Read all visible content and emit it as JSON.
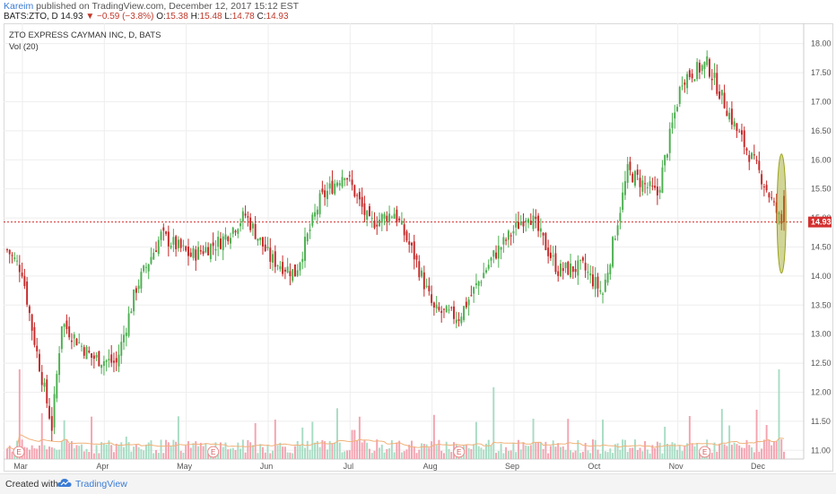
{
  "header": {
    "publisher": "Kareim",
    "published_text": " published on TradingView.com, December 12, 2017 15:12 EST",
    "symbol": "BATS:ZTO, D",
    "last": "14.93",
    "change": "▼ −0.59 (−3.8%)",
    "open_label": "O:",
    "open": "15.38",
    "high_label": "H:",
    "high": "15.48",
    "low_label": "L:",
    "low": "14.78",
    "close_label": "C:",
    "close": "14.93"
  },
  "legend": {
    "title": "ZTO EXPRESS CAYMAN INC, D, BATS",
    "volume": "Vol (20)"
  },
  "footer": {
    "created_with": "Created with",
    "brand": "TradingView"
  },
  "colors": {
    "up": "#4caf50",
    "down": "#c62828",
    "vol_up": "#a8dcc4",
    "vol_down": "#f4a3b0",
    "price_line": "#d32f2f",
    "ma": "#f0b27a",
    "highlight": "#9aa21a",
    "brand": "#3a7bd5"
  },
  "chart_data": {
    "type": "candlestick",
    "price_axis": {
      "ticks": [
        "11.00",
        "11.50",
        "12.00",
        "12.50",
        "13.00",
        "13.50",
        "14.00",
        "14.50",
        "15.00",
        "15.50",
        "16.00",
        "16.50",
        "17.00",
        "17.50",
        "18.00"
      ],
      "range": [
        10.85,
        18.35
      ]
    },
    "time_axis": {
      "labels": [
        "Mar",
        "Apr",
        "May",
        "Jun",
        "Jul",
        "Aug",
        "Sep",
        "Oct",
        "Nov",
        "Dec"
      ]
    },
    "last_price_label": "14.93",
    "last_price": 14.93,
    "earnings_marker": "E",
    "earnings_label_months": [
      "Mar",
      "May",
      "Aug",
      "Nov"
    ],
    "anchors": [
      [
        0,
        14.45
      ],
      [
        6,
        14.1
      ],
      [
        10,
        13.1
      ],
      [
        18,
        11.4
      ],
      [
        22,
        13.2
      ],
      [
        34,
        12.6
      ],
      [
        44,
        12.5
      ],
      [
        52,
        13.8
      ],
      [
        62,
        14.7
      ],
      [
        74,
        14.35
      ],
      [
        86,
        14.6
      ],
      [
        96,
        15.05
      ],
      [
        106,
        14.3
      ],
      [
        116,
        14.05
      ],
      [
        126,
        15.3
      ],
      [
        136,
        15.8
      ],
      [
        146,
        14.9
      ],
      [
        156,
        15.1
      ],
      [
        164,
        14.35
      ],
      [
        172,
        13.4
      ],
      [
        182,
        13.3
      ],
      [
        196,
        14.35
      ],
      [
        210,
        15.1
      ],
      [
        222,
        14.1
      ],
      [
        232,
        14.15
      ],
      [
        240,
        13.7
      ],
      [
        250,
        15.8
      ],
      [
        262,
        15.4
      ],
      [
        272,
        17.4
      ],
      [
        282,
        17.65
      ],
      [
        294,
        16.5
      ],
      [
        304,
        15.7
      ],
      [
        312,
        14.9
      ]
    ],
    "highlight_candle": 312,
    "volume_notes": "20-day volume average shown as orange line"
  }
}
